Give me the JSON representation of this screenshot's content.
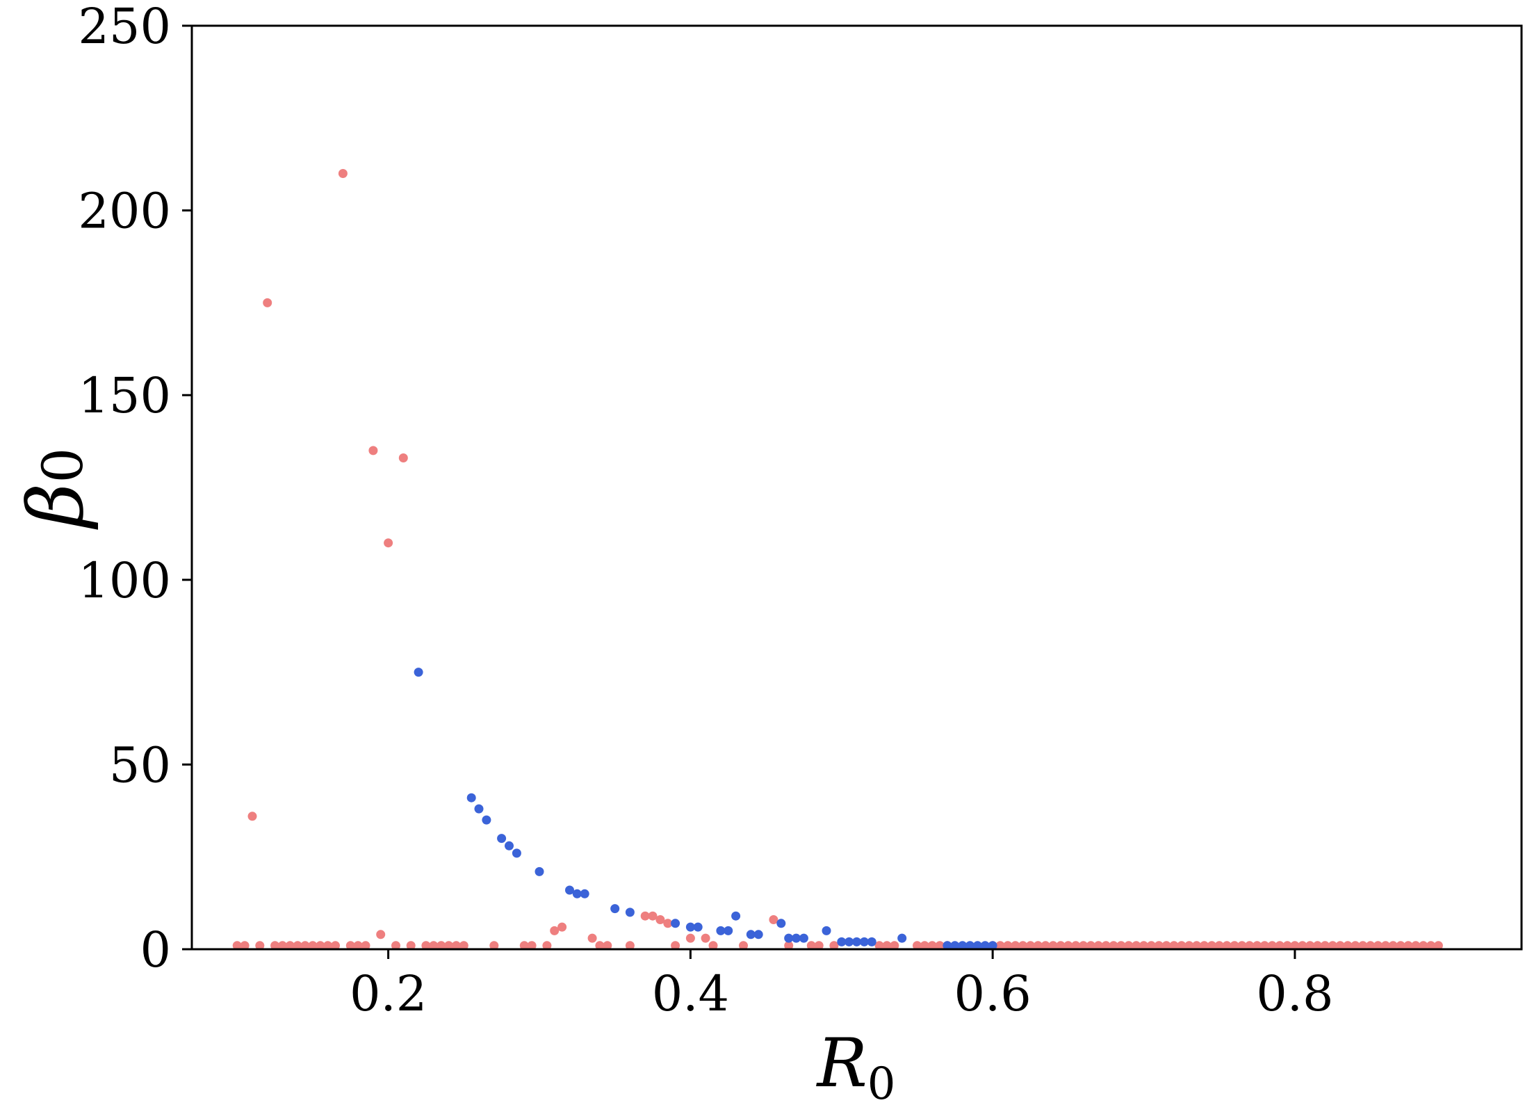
{
  "chart_data": {
    "type": "scatter",
    "xlabel": {
      "main": "R",
      "sub": "0"
    },
    "ylabel": {
      "main": "β",
      "sub": "0"
    },
    "xlim": [
      0.07,
      0.95
    ],
    "ylim": [
      0,
      250
    ],
    "xticks": [
      0.2,
      0.4,
      0.6,
      0.8
    ],
    "xtick_labels": [
      "0.2",
      "0.4",
      "0.6",
      "0.8"
    ],
    "yticks": [
      0,
      50,
      100,
      150,
      200,
      250
    ],
    "ytick_labels": [
      "0",
      "50",
      "100",
      "150",
      "200",
      "250"
    ],
    "grid": false,
    "legend": "none",
    "series": [
      {
        "color": "#ee7f7f",
        "points": [
          [
            0.1,
            1
          ],
          [
            0.105,
            1
          ],
          [
            0.11,
            36
          ],
          [
            0.115,
            1
          ],
          [
            0.12,
            175
          ],
          [
            0.125,
            1
          ],
          [
            0.13,
            1
          ],
          [
            0.135,
            1
          ],
          [
            0.14,
            1
          ],
          [
            0.145,
            1
          ],
          [
            0.15,
            1
          ],
          [
            0.155,
            1
          ],
          [
            0.16,
            1
          ],
          [
            0.165,
            1
          ],
          [
            0.17,
            210
          ],
          [
            0.175,
            1
          ],
          [
            0.18,
            1
          ],
          [
            0.185,
            1
          ],
          [
            0.19,
            135
          ],
          [
            0.195,
            4
          ],
          [
            0.2,
            110
          ],
          [
            0.205,
            1
          ],
          [
            0.21,
            133
          ],
          [
            0.215,
            1
          ],
          [
            0.225,
            1
          ],
          [
            0.23,
            1
          ],
          [
            0.235,
            1
          ],
          [
            0.24,
            1
          ],
          [
            0.245,
            1
          ],
          [
            0.25,
            1
          ],
          [
            0.27,
            1
          ],
          [
            0.29,
            1
          ],
          [
            0.295,
            1
          ],
          [
            0.305,
            1
          ],
          [
            0.31,
            5
          ],
          [
            0.315,
            6
          ],
          [
            0.335,
            3
          ],
          [
            0.34,
            1
          ],
          [
            0.345,
            1
          ],
          [
            0.36,
            1
          ],
          [
            0.37,
            9
          ],
          [
            0.375,
            9
          ],
          [
            0.38,
            8
          ],
          [
            0.385,
            7
          ],
          [
            0.39,
            1
          ],
          [
            0.4,
            3
          ],
          [
            0.41,
            3
          ],
          [
            0.415,
            1
          ],
          [
            0.435,
            1
          ],
          [
            0.455,
            8
          ],
          [
            0.465,
            1
          ],
          [
            0.48,
            1
          ],
          [
            0.485,
            1
          ],
          [
            0.495,
            1
          ],
          [
            0.525,
            1
          ],
          [
            0.53,
            1
          ],
          [
            0.535,
            1
          ],
          [
            0.55,
            1
          ],
          [
            0.555,
            1
          ],
          [
            0.56,
            1
          ],
          [
            0.565,
            1
          ],
          [
            0.57,
            1
          ],
          [
            0.6,
            1
          ],
          [
            0.605,
            1
          ],
          [
            0.61,
            1
          ],
          [
            0.615,
            1
          ],
          [
            0.62,
            1
          ],
          [
            0.625,
            1
          ],
          [
            0.63,
            1
          ],
          [
            0.635,
            1
          ],
          [
            0.64,
            1
          ],
          [
            0.645,
            1
          ],
          [
            0.65,
            1
          ],
          [
            0.655,
            1
          ],
          [
            0.66,
            1
          ],
          [
            0.665,
            1
          ],
          [
            0.67,
            1
          ],
          [
            0.675,
            1
          ],
          [
            0.68,
            1
          ],
          [
            0.685,
            1
          ],
          [
            0.69,
            1
          ],
          [
            0.695,
            1
          ],
          [
            0.7,
            1
          ],
          [
            0.705,
            1
          ],
          [
            0.71,
            1
          ],
          [
            0.715,
            1
          ],
          [
            0.72,
            1
          ],
          [
            0.725,
            1
          ],
          [
            0.73,
            1
          ],
          [
            0.735,
            1
          ],
          [
            0.74,
            1
          ],
          [
            0.745,
            1
          ],
          [
            0.75,
            1
          ],
          [
            0.755,
            1
          ],
          [
            0.76,
            1
          ],
          [
            0.765,
            1
          ],
          [
            0.77,
            1
          ],
          [
            0.775,
            1
          ],
          [
            0.78,
            1
          ],
          [
            0.785,
            1
          ],
          [
            0.79,
            1
          ],
          [
            0.795,
            1
          ],
          [
            0.8,
            1
          ],
          [
            0.805,
            1
          ],
          [
            0.81,
            1
          ],
          [
            0.815,
            1
          ],
          [
            0.82,
            1
          ],
          [
            0.825,
            1
          ],
          [
            0.83,
            1
          ],
          [
            0.835,
            1
          ],
          [
            0.84,
            1
          ],
          [
            0.845,
            1
          ],
          [
            0.85,
            1
          ],
          [
            0.855,
            1
          ],
          [
            0.86,
            1
          ],
          [
            0.865,
            1
          ],
          [
            0.87,
            1
          ],
          [
            0.875,
            1
          ],
          [
            0.88,
            1
          ],
          [
            0.885,
            1
          ],
          [
            0.89,
            1
          ],
          [
            0.895,
            1
          ]
        ]
      },
      {
        "color": "#3b63d8",
        "points": [
          [
            0.22,
            75
          ],
          [
            0.255,
            41
          ],
          [
            0.26,
            38
          ],
          [
            0.265,
            35
          ],
          [
            0.275,
            30
          ],
          [
            0.28,
            28
          ],
          [
            0.285,
            26
          ],
          [
            0.3,
            21
          ],
          [
            0.32,
            16
          ],
          [
            0.325,
            15
          ],
          [
            0.33,
            15
          ],
          [
            0.35,
            11
          ],
          [
            0.36,
            10
          ],
          [
            0.39,
            7
          ],
          [
            0.4,
            6
          ],
          [
            0.405,
            6
          ],
          [
            0.42,
            5
          ],
          [
            0.425,
            5
          ],
          [
            0.43,
            9
          ],
          [
            0.44,
            4
          ],
          [
            0.445,
            4
          ],
          [
            0.46,
            7
          ],
          [
            0.465,
            3
          ],
          [
            0.47,
            3
          ],
          [
            0.475,
            3
          ],
          [
            0.49,
            5
          ],
          [
            0.5,
            2
          ],
          [
            0.505,
            2
          ],
          [
            0.51,
            2
          ],
          [
            0.515,
            2
          ],
          [
            0.52,
            2
          ],
          [
            0.54,
            3
          ],
          [
            0.57,
            1
          ],
          [
            0.575,
            1
          ],
          [
            0.58,
            1
          ],
          [
            0.585,
            1
          ],
          [
            0.59,
            1
          ],
          [
            0.595,
            1
          ],
          [
            0.6,
            1
          ]
        ]
      }
    ]
  }
}
